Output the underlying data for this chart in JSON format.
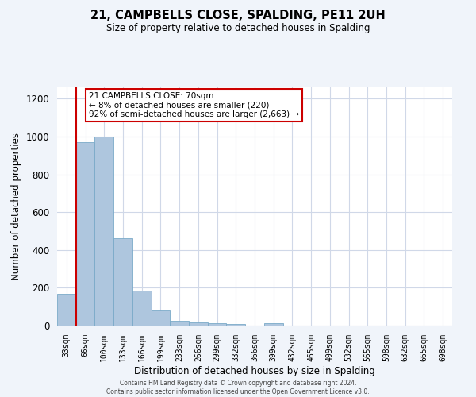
{
  "title": "21, CAMPBELLS CLOSE, SPALDING, PE11 2UH",
  "subtitle": "Size of property relative to detached houses in Spalding",
  "xlabel": "Distribution of detached houses by size in Spalding",
  "ylabel": "Number of detached properties",
  "bar_labels": [
    "33sqm",
    "66sqm",
    "100sqm",
    "133sqm",
    "166sqm",
    "199sqm",
    "233sqm",
    "266sqm",
    "299sqm",
    "332sqm",
    "366sqm",
    "399sqm",
    "432sqm",
    "465sqm",
    "499sqm",
    "532sqm",
    "565sqm",
    "598sqm",
    "632sqm",
    "665sqm",
    "698sqm"
  ],
  "bar_values": [
    170,
    970,
    1000,
    460,
    185,
    80,
    25,
    18,
    12,
    8,
    0,
    12,
    0,
    0,
    0,
    0,
    0,
    0,
    0,
    0,
    0
  ],
  "bar_color": "#aec6de",
  "bar_edge_color": "#7aaac8",
  "vline_color": "#cc0000",
  "annotation_text": "21 CAMPBELLS CLOSE: 70sqm\n← 8% of detached houses are smaller (220)\n92% of semi-detached houses are larger (2,663) →",
  "annotation_box_color": "#ffffff",
  "annotation_box_edge_color": "#cc0000",
  "ylim": [
    0,
    1260
  ],
  "yticks": [
    0,
    200,
    400,
    600,
    800,
    1000,
    1200
  ],
  "grid_color": "#d0d8e8",
  "plot_bg_color": "#ffffff",
  "fig_bg_color": "#f0f4fa",
  "footnote": "Contains HM Land Registry data © Crown copyright and database right 2024.\nContains public sector information licensed under the Open Government Licence v3.0."
}
